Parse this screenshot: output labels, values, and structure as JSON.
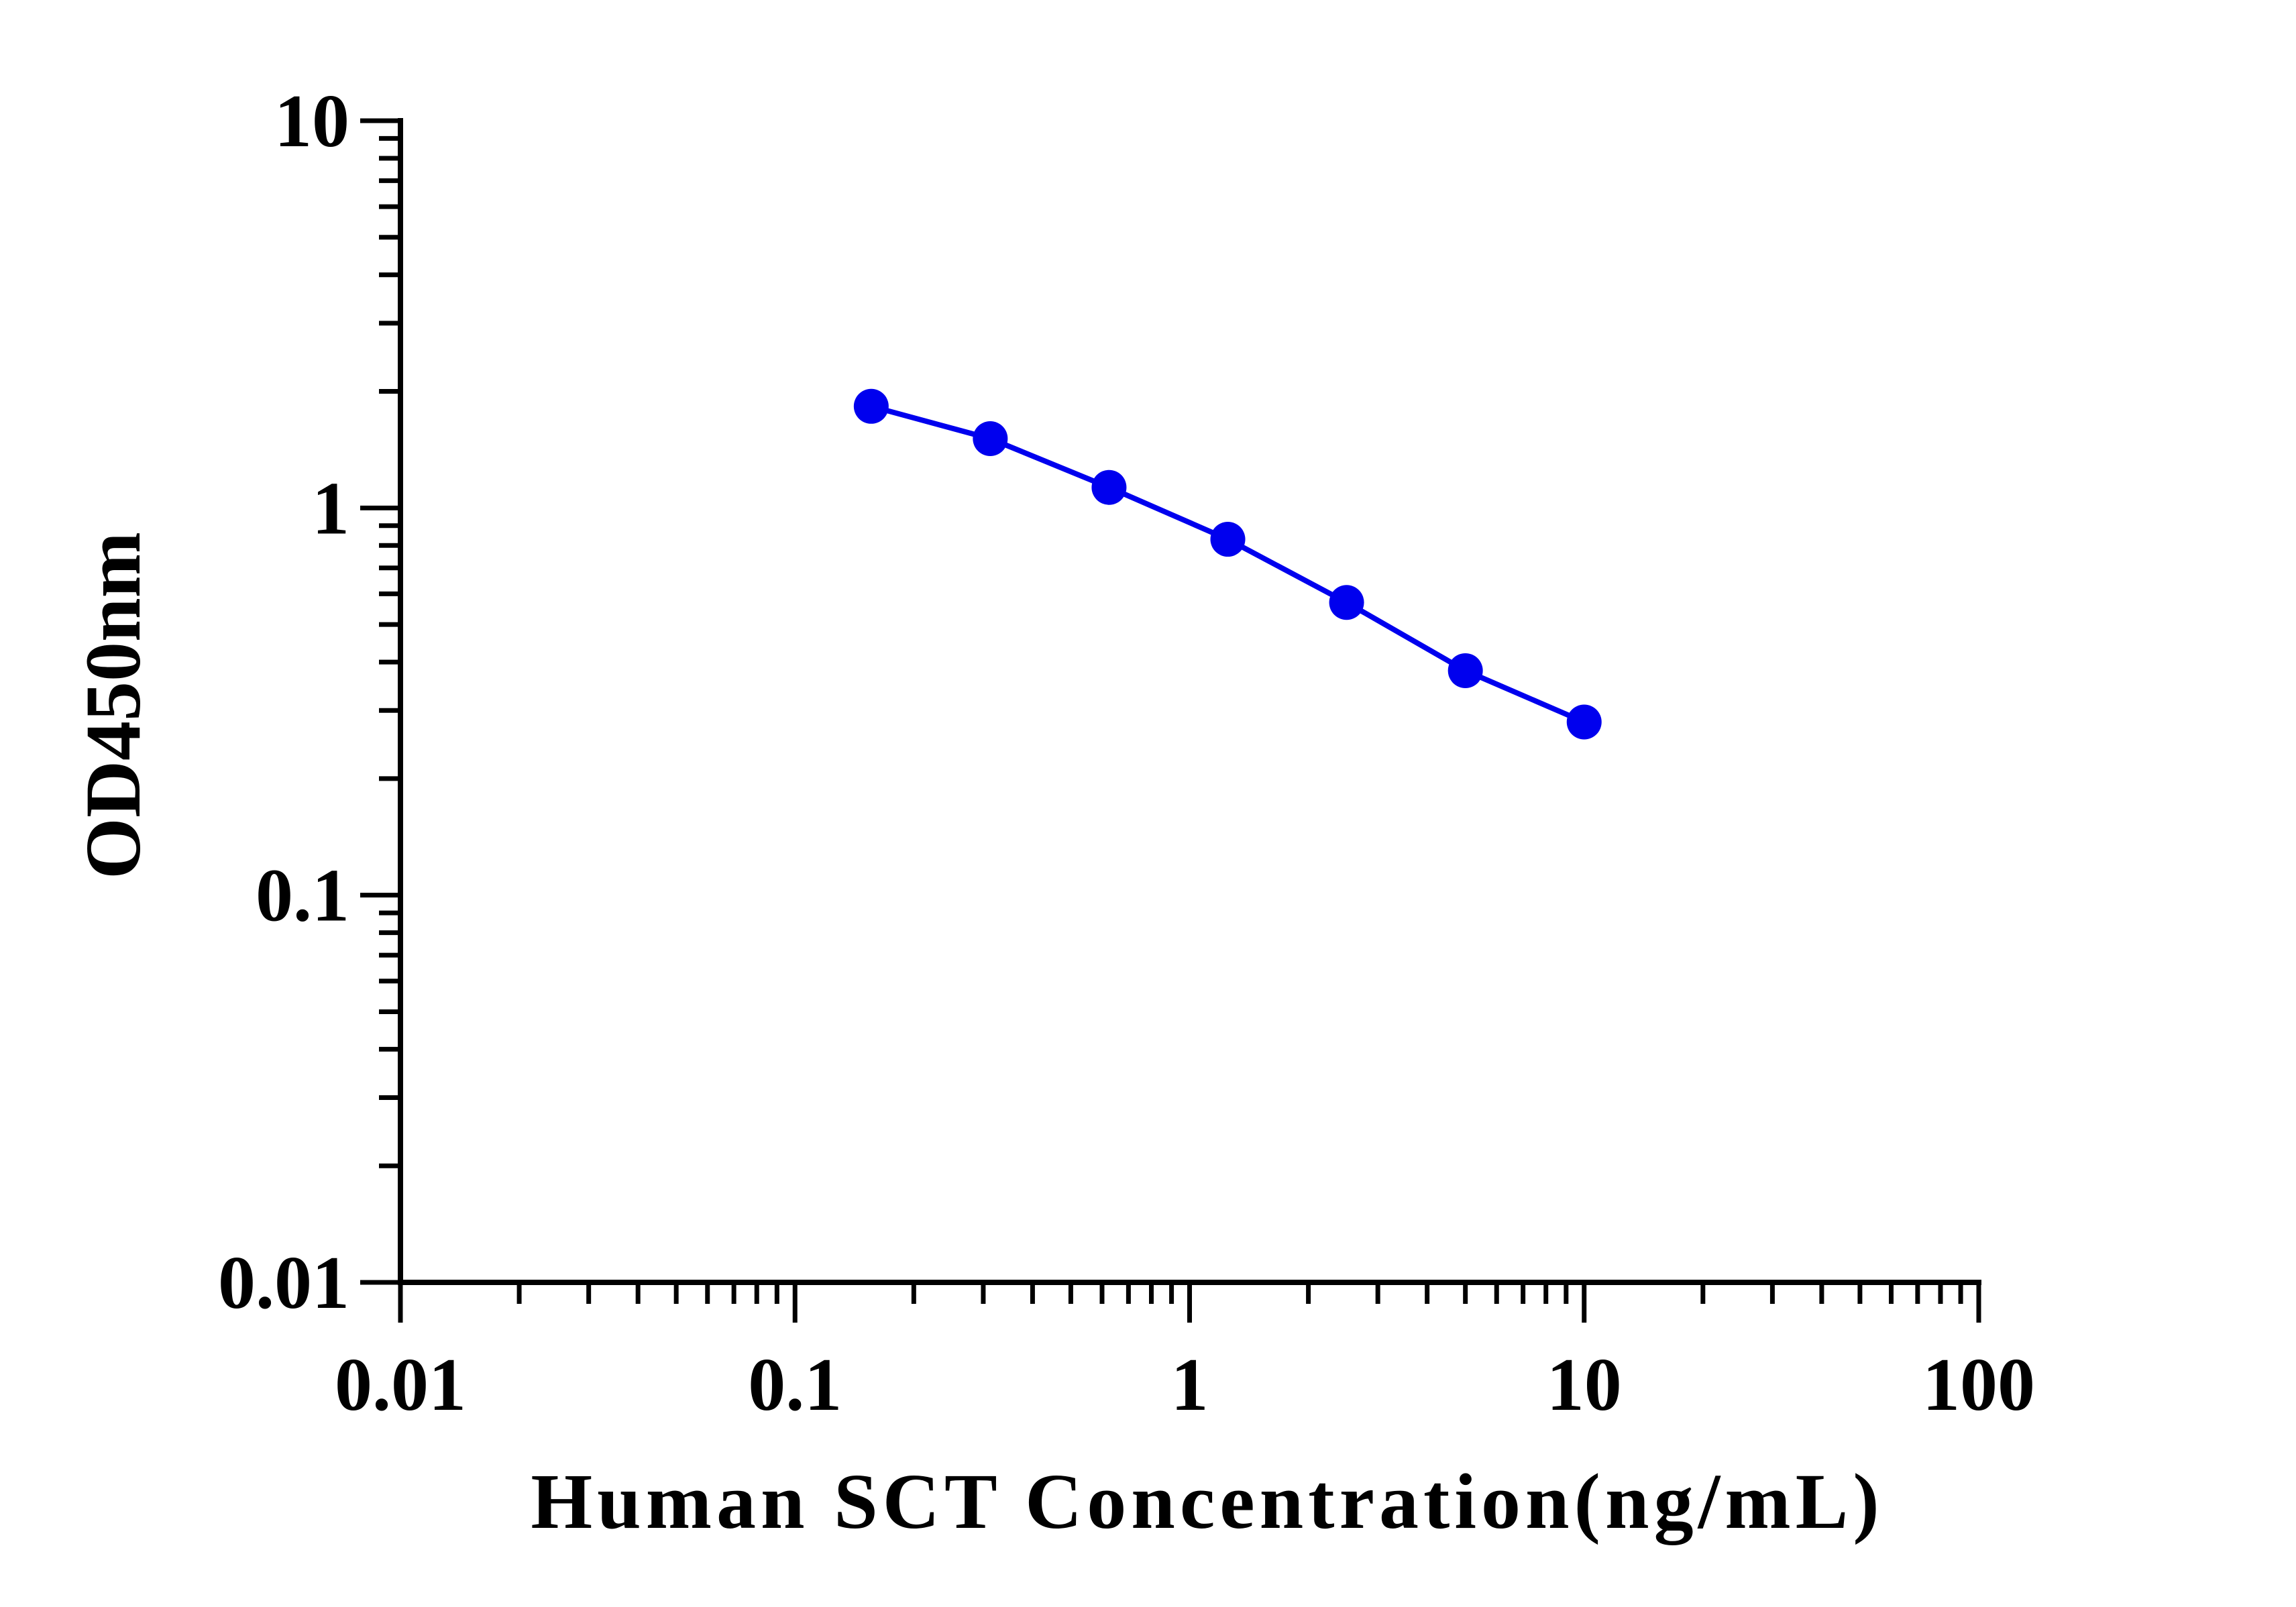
{
  "chart_data": {
    "type": "line",
    "title": "",
    "xlabel": "Human SCT Concentration(ng/mL)",
    "ylabel": "OD450nm",
    "x_scale": "log",
    "y_scale": "log",
    "xlim": [
      0.01,
      100
    ],
    "ylim": [
      0.01,
      10
    ],
    "x_tick_labels": [
      "0.01",
      "0.1",
      "1",
      "10",
      "100"
    ],
    "y_tick_labels": [
      "0.01",
      "0.1",
      "1",
      "10"
    ],
    "grid": false,
    "legend": "none",
    "series": [
      {
        "color": "#0000ee",
        "x": [
          0.156,
          0.3125,
          0.625,
          1.25,
          2.5,
          5,
          10
        ],
        "y": [
          1.83,
          1.51,
          1.13,
          0.83,
          0.57,
          0.38,
          0.28
        ]
      }
    ]
  }
}
